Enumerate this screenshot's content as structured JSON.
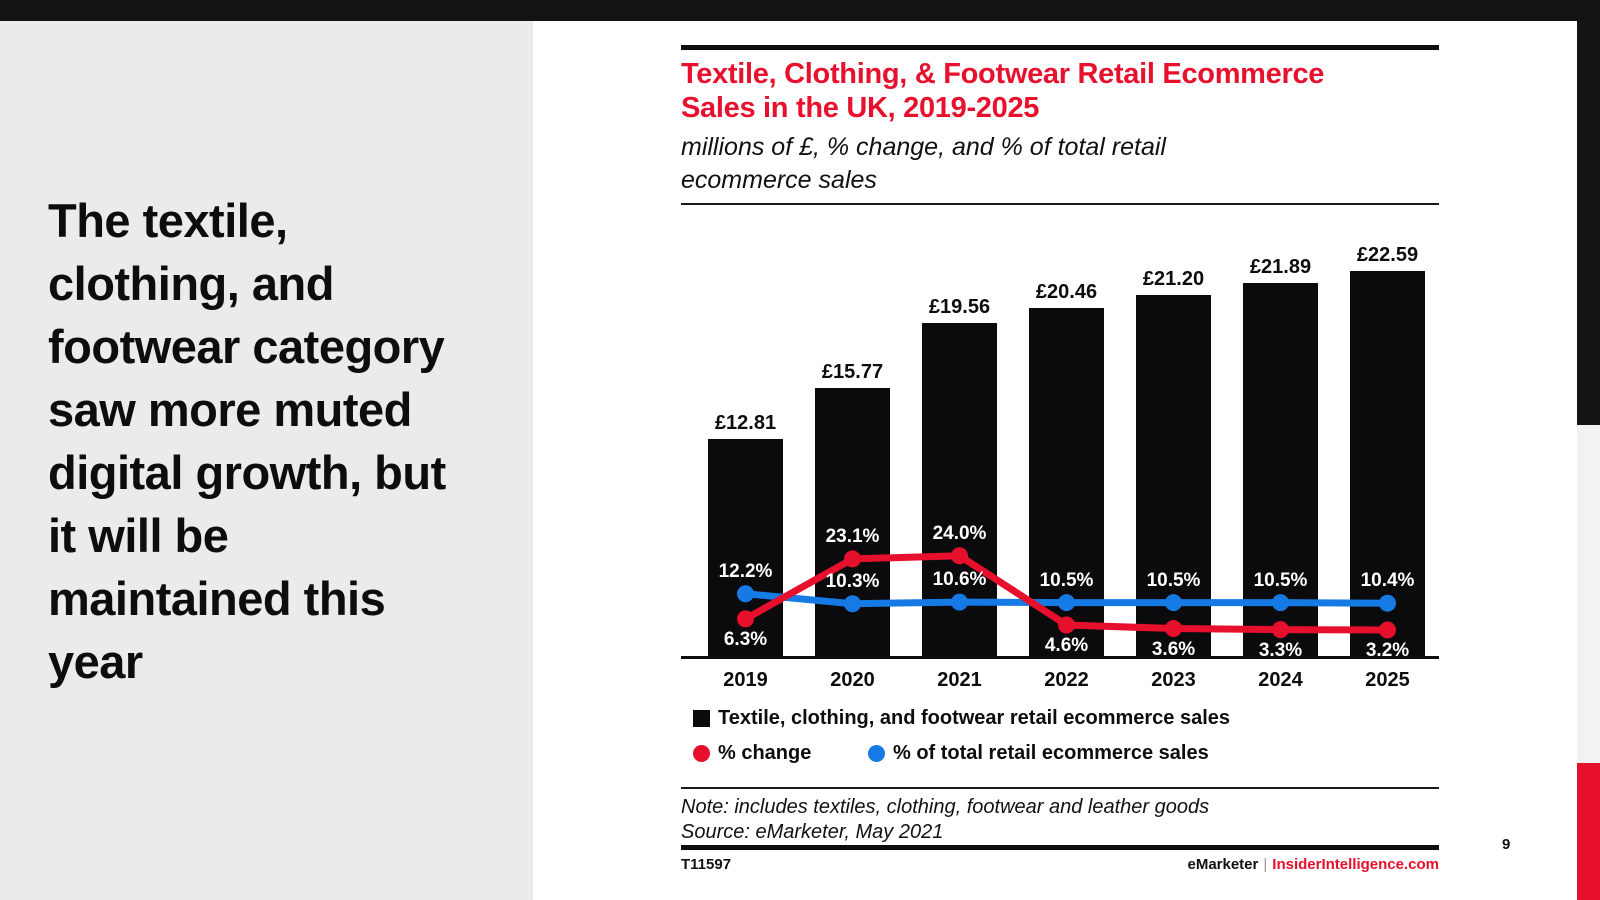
{
  "slide": {
    "headline": "The textile, clothing, and footwear category saw more muted digital growth, but it will be maintained this year",
    "page_number": "9"
  },
  "chart": {
    "title": "Textile, Clothing, & Footwear Retail Ecommerce Sales in the UK, 2019-2025",
    "subtitle": "millions of £, % change, and % of total retail ecommerce sales",
    "note": "Note: includes textiles, clothing, footwear and leather goods",
    "source": "Source: eMarketer, May 2021",
    "footer_id": "T11597",
    "brand": {
      "name": "eMarketer",
      "separator": "|",
      "site": "InsiderIntelligence.com"
    },
    "legend": [
      {
        "label": "Textile, clothing, and footwear retail ecommerce sales",
        "swatch": "black-square"
      },
      {
        "label": "% change",
        "swatch": "red-dot"
      },
      {
        "label": "% of total retail ecommerce sales",
        "swatch": "blue-dot"
      }
    ],
    "colors": {
      "bar": "#0b0b0d",
      "red": "#e60f2c",
      "blue": "#167ae4",
      "title_red": "#e8112d",
      "sidebar_gray": "#ebebeb",
      "strip_gray": "#f2f2f2",
      "top_bar_black": "#131313"
    }
  },
  "chart_data": {
    "type": "bar",
    "title": "Textile, Clothing, & Footwear Retail Ecommerce Sales in the UK, 2019-2025",
    "subtitle": "millions of £, % change, and % of total retail ecommerce sales",
    "categories": [
      "2019",
      "2020",
      "2021",
      "2022",
      "2023",
      "2024",
      "2025"
    ],
    "series": [
      {
        "name": "Textile, clothing, and footwear retail ecommerce sales",
        "type": "bar",
        "unit": "millions of £",
        "values": [
          12.81,
          15.77,
          19.56,
          20.46,
          21.2,
          21.89,
          22.59
        ],
        "labels": [
          "£12.81",
          "£15.77",
          "£19.56",
          "£20.46",
          "£21.20",
          "£21.89",
          "£22.59"
        ]
      },
      {
        "name": "% change",
        "type": "line",
        "unit": "%",
        "values": [
          6.3,
          23.1,
          24.0,
          4.6,
          3.6,
          3.3,
          3.2
        ],
        "labels": [
          "6.3%",
          "23.1%",
          "24.0%",
          "4.6%",
          "3.6%",
          "3.3%",
          "3.2%"
        ],
        "label_position": [
          "below",
          "above",
          "above",
          "below",
          "below",
          "below",
          "below"
        ]
      },
      {
        "name": "% of total retail ecommerce sales",
        "type": "line",
        "unit": "%",
        "values": [
          12.2,
          10.3,
          10.6,
          10.5,
          10.5,
          10.5,
          10.4
        ],
        "labels": [
          "12.2%",
          "10.3%",
          "10.6%",
          "10.5%",
          "10.5%",
          "10.5%",
          "10.4%"
        ],
        "label_position": [
          "above",
          "above",
          "above",
          "above",
          "above",
          "above",
          "above"
        ]
      }
    ],
    "ylim": [
      0,
      25
    ],
    "grid": false,
    "legend_position": "bottom"
  }
}
